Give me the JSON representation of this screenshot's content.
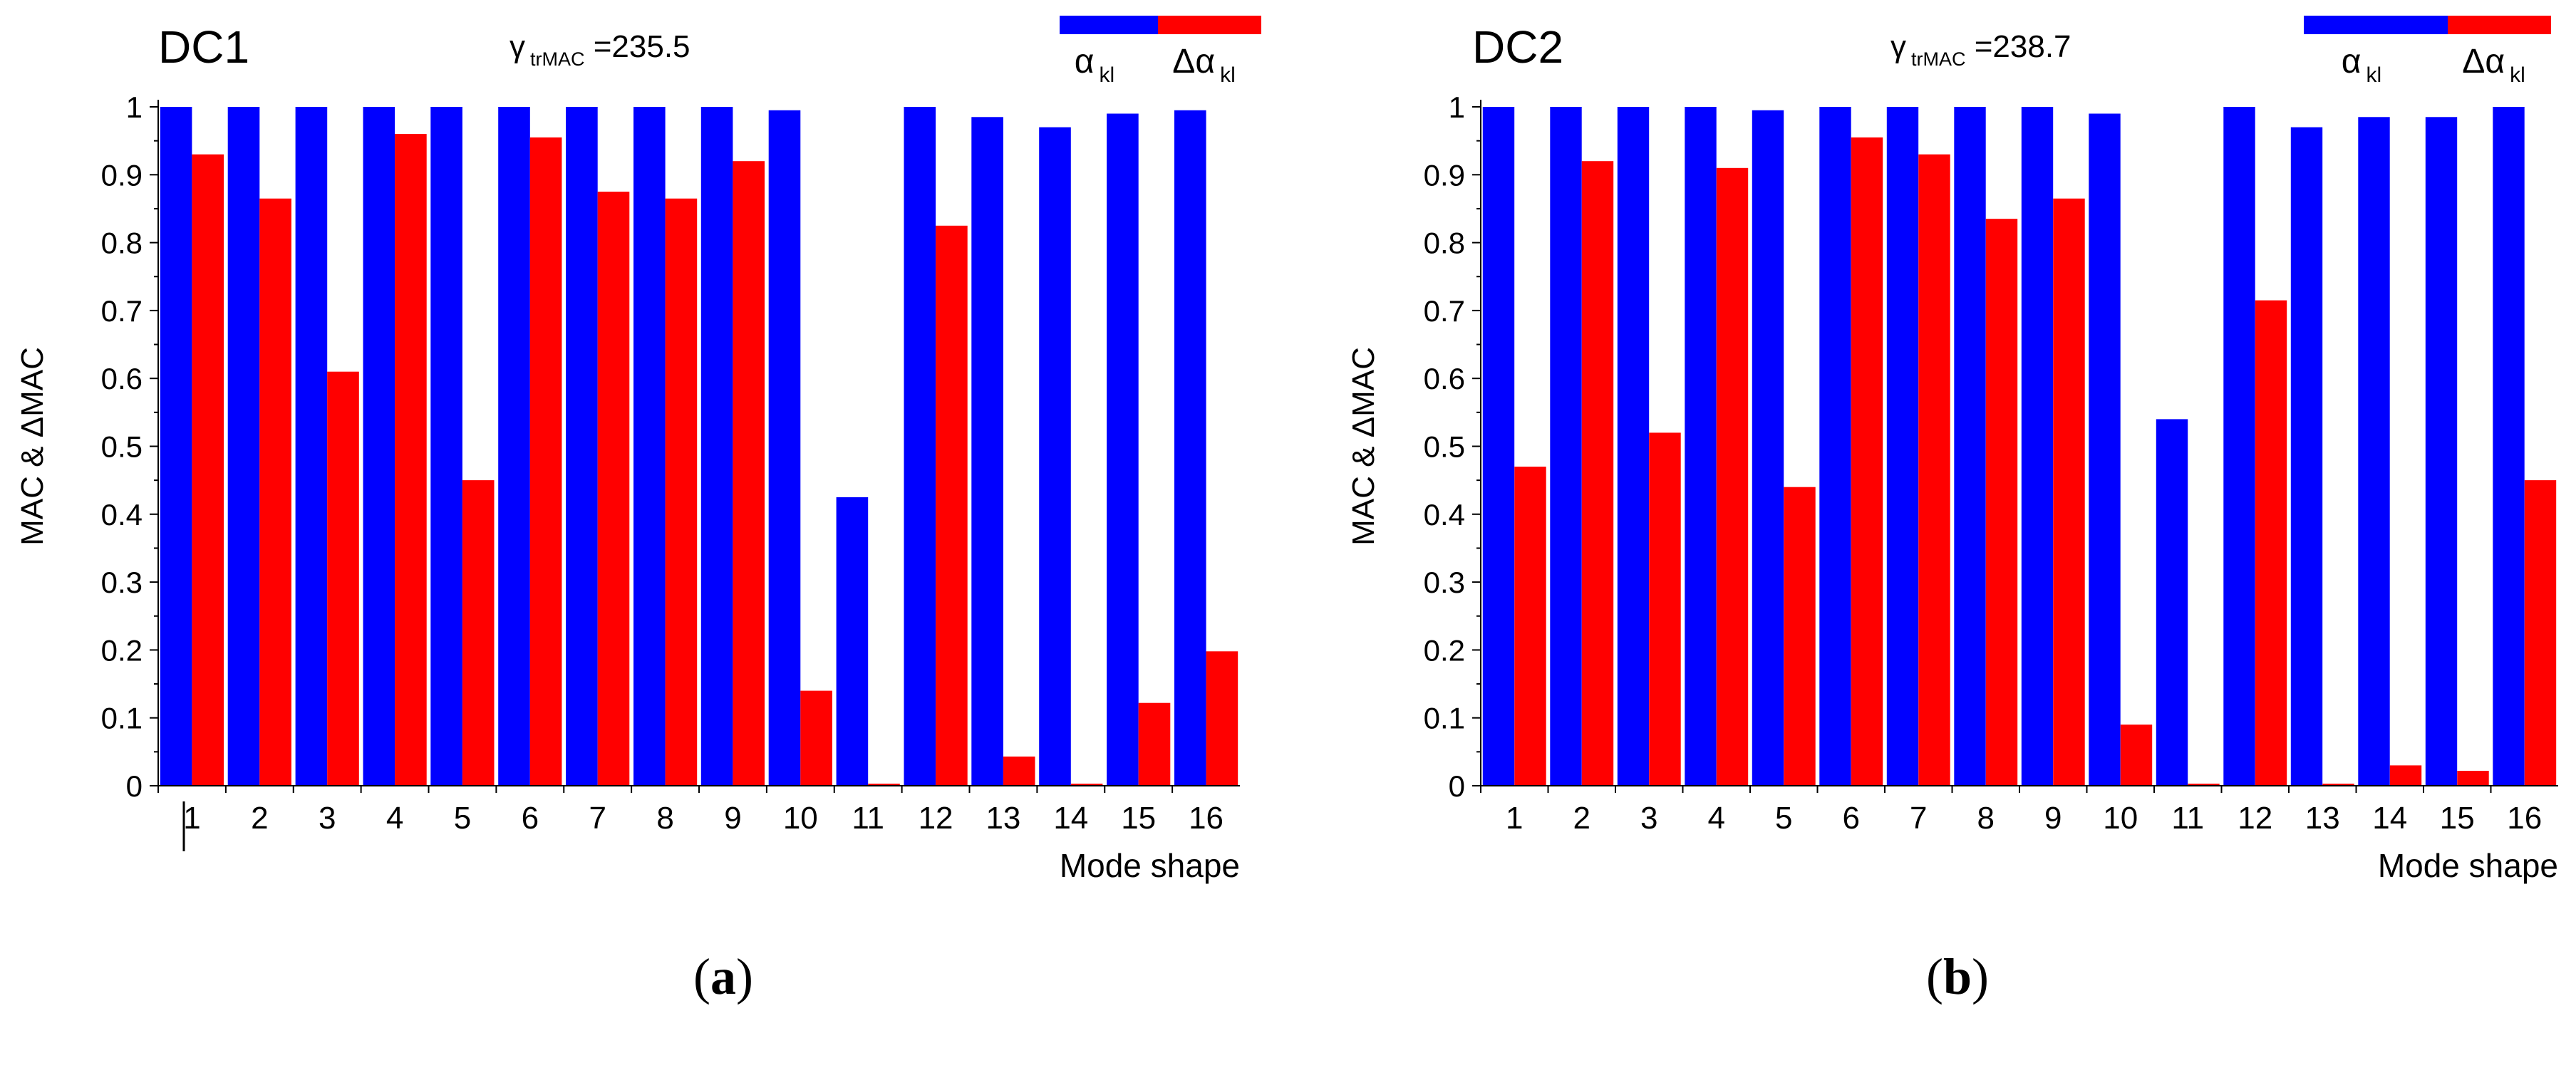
{
  "colors": {
    "alpha": "#0000ff",
    "delta": "#ff0000",
    "axis": "#000000"
  },
  "chart_data": [
    {
      "type": "bar",
      "title": "DC1",
      "annotation": {
        "symbol": "γ",
        "subscript": "trMAC",
        "text": " =235.5"
      },
      "ylabel": "MAC & ΔMAC",
      "xlabel": "Mode shape",
      "ylim": [
        0,
        1
      ],
      "yticks": [
        "0",
        "0.1",
        "0.2",
        "0.3",
        "0.4",
        "0.5",
        "0.6",
        "0.7",
        "0.8",
        "0.9",
        "1"
      ],
      "categories": [
        "1",
        "2",
        "3",
        "4",
        "5",
        "6",
        "7",
        "8",
        "9",
        "10",
        "11",
        "12",
        "13",
        "14",
        "15",
        "16"
      ],
      "legend": [
        {
          "symbol": "α",
          "subscript": "kl"
        },
        {
          "symbol": "Δα",
          "subscript": "kl"
        }
      ],
      "series": [
        {
          "name": "α_kl",
          "values": [
            1.0,
            1.0,
            1.0,
            1.0,
            1.0,
            1.0,
            1.0,
            1.0,
            1.0,
            0.995,
            0.425,
            1.0,
            0.985,
            0.97,
            0.99,
            0.995
          ]
        },
        {
          "name": "Δα_kl",
          "values": [
            0.93,
            0.865,
            0.61,
            0.96,
            0.45,
            0.955,
            0.875,
            0.865,
            0.92,
            0.14,
            0.003,
            0.825,
            0.043,
            0.003,
            0.122,
            0.198
          ]
        }
      ],
      "panel_label": "a"
    },
    {
      "type": "bar",
      "title": "DC2",
      "annotation": {
        "symbol": "γ",
        "subscript": "trMAC",
        "text": " =238.7"
      },
      "ylabel": "MAC & ΔMAC",
      "xlabel": "Mode shape",
      "ylim": [
        0,
        1
      ],
      "yticks": [
        "0",
        "0.1",
        "0.2",
        "0.3",
        "0.4",
        "0.5",
        "0.6",
        "0.7",
        "0.8",
        "0.9",
        "1"
      ],
      "categories": [
        "1",
        "2",
        "3",
        "4",
        "5",
        "6",
        "7",
        "8",
        "9",
        "10",
        "11",
        "12",
        "13",
        "14",
        "15",
        "16"
      ],
      "legend": [
        {
          "symbol": "α",
          "subscript": "kl"
        },
        {
          "symbol": "Δα",
          "subscript": "kl"
        }
      ],
      "series": [
        {
          "name": "α_kl",
          "values": [
            1.0,
            1.0,
            1.0,
            1.0,
            0.995,
            1.0,
            1.0,
            1.0,
            1.0,
            0.99,
            0.54,
            1.0,
            0.97,
            0.985,
            0.985,
            1.0
          ]
        },
        {
          "name": "Δα_kl",
          "values": [
            0.47,
            0.92,
            0.52,
            0.91,
            0.44,
            0.955,
            0.93,
            0.835,
            0.865,
            0.09,
            0.003,
            0.715,
            0.003,
            0.03,
            0.022,
            0.45
          ]
        }
      ],
      "panel_label": "b"
    }
  ]
}
